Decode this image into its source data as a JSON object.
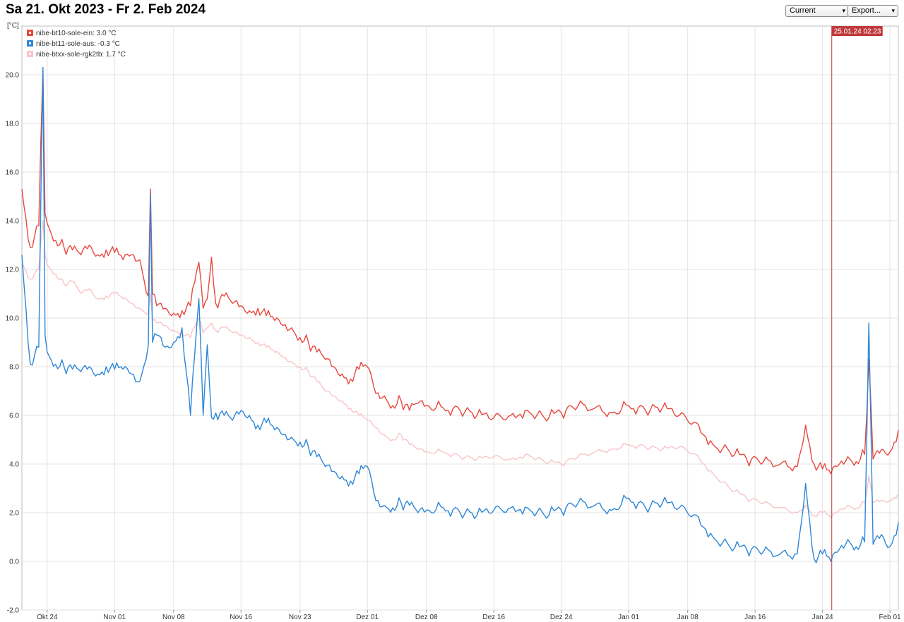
{
  "title": "Sa 21. Okt 2023 - Fr 2. Feb 2024",
  "controls": {
    "range_select": {
      "value": "Current"
    },
    "export_select": {
      "value": "Export..."
    }
  },
  "icons": {
    "dropdown": "chevron-down-icon",
    "legend_marker": "square-swatch-icon"
  },
  "cursor_label": "25.01.24 02:23",
  "chart_data": {
    "type": "line",
    "title": "",
    "xlabel": "",
    "ylabel": "[°C]",
    "x_range": [
      "2023-10-21",
      "2024-02-02"
    ],
    "ylim": [
      -2.0,
      22.0
    ],
    "y_ticks": [
      -2.0,
      0.0,
      2.0,
      4.0,
      6.0,
      8.0,
      10.0,
      12.0,
      14.0,
      16.0,
      18.0,
      20.0
    ],
    "y_tick_labels": [
      "-2.0",
      "0.0",
      "2.0",
      "4.0",
      "6.0",
      "8.0",
      "10.0",
      "12.0",
      "14.0",
      "16.0",
      "18.0",
      "20.0"
    ],
    "x_ticks": [
      "2023-10-24",
      "2023-11-01",
      "2023-11-08",
      "2023-11-16",
      "2023-11-23",
      "2023-12-01",
      "2023-12-08",
      "2023-12-16",
      "2023-12-24",
      "2024-01-01",
      "2024-01-08",
      "2024-01-16",
      "2024-01-24",
      "2024-02-01"
    ],
    "x_tick_labels": [
      "Okt 24",
      "Nov 01",
      "Nov 08",
      "Nov 16",
      "Nov 23",
      "Dez 01",
      "Dez 08",
      "Dez 16",
      "Dez 24",
      "Jan 01",
      "Jan 08",
      "Jan 16",
      "Jan 24",
      "Feb 01"
    ],
    "grid": true,
    "legend_position": "top-left",
    "cursor_x": "2024-01-25 02:23",
    "cursor_color": "#c0393b",
    "series": [
      {
        "name": "nibe-bt10-sole-ein",
        "legend": "nibe-bt10-sole-ein: 3.0 °C",
        "color": "#e8483e",
        "x": [
          "2023-10-21",
          "2023-10-22",
          "2023-10-23",
          "2023-10-23 12:00",
          "2023-10-23 18:00",
          "2023-10-24",
          "2023-10-25",
          "2023-10-26",
          "2023-10-27",
          "2023-10-28",
          "2023-10-29",
          "2023-10-30",
          "2023-10-31",
          "2023-11-01",
          "2023-11-02",
          "2023-11-03",
          "2023-11-04",
          "2023-11-05",
          "2023-11-05 06:00",
          "2023-11-05 12:00",
          "2023-11-06",
          "2023-11-07",
          "2023-11-08",
          "2023-11-09",
          "2023-11-10",
          "2023-11-11",
          "2023-11-11 12:00",
          "2023-11-12",
          "2023-11-12 12:00",
          "2023-11-13",
          "2023-11-14",
          "2023-11-15",
          "2023-11-16",
          "2023-11-17",
          "2023-11-18",
          "2023-11-19",
          "2023-11-20",
          "2023-11-21",
          "2023-11-22",
          "2023-11-23",
          "2023-11-24",
          "2023-11-25",
          "2023-11-26",
          "2023-11-27",
          "2023-11-28",
          "2023-11-29",
          "2023-11-30",
          "2023-12-01",
          "2023-12-02",
          "2023-12-03",
          "2023-12-04",
          "2023-12-05",
          "2023-12-06",
          "2023-12-07",
          "2023-12-08",
          "2023-12-10",
          "2023-12-12",
          "2023-12-14",
          "2023-12-16",
          "2023-12-18",
          "2023-12-20",
          "2023-12-22",
          "2023-12-24",
          "2023-12-26",
          "2023-12-28",
          "2023-12-30",
          "2024-01-01",
          "2024-01-03",
          "2024-01-05",
          "2024-01-07",
          "2024-01-09",
          "2024-01-11",
          "2024-01-13",
          "2024-01-15",
          "2024-01-17",
          "2024-01-19",
          "2024-01-21",
          "2024-01-22",
          "2024-01-23",
          "2024-01-24",
          "2024-01-25",
          "2024-01-26",
          "2024-01-27",
          "2024-01-28",
          "2024-01-29",
          "2024-01-29 12:00",
          "2024-01-30",
          "2024-01-31",
          "2024-02-01",
          "2024-02-02"
        ],
        "y": [
          15.3,
          12.9,
          13.8,
          20.2,
          14.3,
          13.9,
          13.2,
          12.9,
          12.8,
          12.6,
          13.0,
          12.6,
          12.8,
          12.7,
          12.4,
          12.6,
          12.4,
          10.9,
          15.3,
          11.0,
          10.5,
          10.4,
          10.2,
          10.3,
          10.5,
          12.3,
          10.4,
          10.8,
          12.5,
          10.6,
          10.9,
          10.6,
          10.5,
          10.3,
          10.4,
          10.1,
          9.9,
          9.7,
          9.6,
          9.2,
          9.0,
          8.6,
          8.3,
          8.0,
          7.7,
          7.5,
          7.9,
          8.0,
          6.9,
          6.8,
          6.4,
          6.6,
          6.2,
          6.5,
          6.4,
          6.3,
          6.2,
          6.0,
          5.9,
          6.0,
          6.2,
          5.9,
          6.1,
          6.4,
          6.3,
          6.1,
          6.4,
          6.2,
          6.3,
          6.0,
          5.7,
          4.8,
          4.5,
          4.2,
          4.1,
          4.0,
          3.9,
          5.6,
          4.0,
          3.8,
          3.6,
          4.0,
          4.3,
          4.1,
          4.4,
          8.3,
          4.2,
          4.6,
          4.5,
          5.4
        ]
      },
      {
        "name": "nibe-bt11-sole-aus",
        "legend": "nibe-bt11-sole-aus: -0.3 °C",
        "color": "#2f86d6",
        "x": [
          "2023-10-21",
          "2023-10-22",
          "2023-10-23",
          "2023-10-23 12:00",
          "2023-10-23 18:00",
          "2023-10-24",
          "2023-10-25",
          "2023-10-26",
          "2023-10-27",
          "2023-10-28",
          "2023-10-29",
          "2023-10-30",
          "2023-10-31",
          "2023-11-01",
          "2023-11-02",
          "2023-11-03",
          "2023-11-04",
          "2023-11-05",
          "2023-11-05 06:00",
          "2023-11-05 12:00",
          "2023-11-06",
          "2023-11-07",
          "2023-11-08",
          "2023-11-09",
          "2023-11-10",
          "2023-11-11",
          "2023-11-11 12:00",
          "2023-11-12",
          "2023-11-12 12:00",
          "2023-11-13",
          "2023-11-14",
          "2023-11-15",
          "2023-11-16",
          "2023-11-17",
          "2023-11-18",
          "2023-11-19",
          "2023-11-20",
          "2023-11-21",
          "2023-11-22",
          "2023-11-23",
          "2023-11-24",
          "2023-11-25",
          "2023-11-26",
          "2023-11-27",
          "2023-11-28",
          "2023-11-29",
          "2023-11-30",
          "2023-12-01",
          "2023-12-02",
          "2023-12-03",
          "2023-12-04",
          "2023-12-05",
          "2023-12-06",
          "2023-12-07",
          "2023-12-08",
          "2023-12-10",
          "2023-12-12",
          "2023-12-14",
          "2023-12-16",
          "2023-12-18",
          "2023-12-20",
          "2023-12-22",
          "2023-12-24",
          "2023-12-26",
          "2023-12-28",
          "2023-12-30",
          "2024-01-01",
          "2024-01-03",
          "2024-01-05",
          "2024-01-07",
          "2024-01-09",
          "2024-01-11",
          "2024-01-13",
          "2024-01-15",
          "2024-01-17",
          "2024-01-19",
          "2024-01-21",
          "2024-01-22",
          "2024-01-23",
          "2024-01-24",
          "2024-01-25",
          "2024-01-26",
          "2024-01-27",
          "2024-01-28",
          "2024-01-29",
          "2024-01-29 12:00",
          "2024-01-30",
          "2024-01-31",
          "2024-02-01",
          "2024-02-02"
        ],
        "y": [
          12.6,
          8.1,
          8.8,
          20.3,
          9.3,
          8.6,
          8.1,
          8.0,
          7.9,
          7.8,
          8.0,
          7.7,
          8.0,
          7.9,
          7.9,
          7.7,
          7.4,
          8.9,
          15.1,
          9.0,
          9.3,
          8.8,
          9.0,
          9.6,
          6.0,
          10.8,
          6.0,
          8.9,
          5.9,
          6.1,
          6.0,
          5.8,
          6.2,
          6.0,
          5.6,
          5.7,
          5.4,
          5.2,
          5.1,
          4.9,
          4.7,
          4.3,
          3.9,
          3.7,
          3.5,
          3.3,
          3.6,
          3.9,
          2.5,
          2.3,
          2.2,
          2.4,
          2.3,
          2.0,
          2.1,
          2.2,
          2.0,
          1.9,
          2.1,
          2.2,
          2.2,
          1.9,
          2.1,
          2.4,
          2.3,
          2.1,
          2.6,
          2.2,
          2.4,
          2.2,
          1.9,
          1.0,
          0.6,
          0.5,
          0.4,
          0.3,
          0.3,
          3.2,
          0.1,
          0.3,
          0.0,
          0.5,
          0.9,
          0.6,
          0.8,
          9.8,
          0.7,
          1.1,
          0.6,
          1.6
        ]
      },
      {
        "name": "nibe-btxx-sole-rgk2tb",
        "legend": "nibe-btxx-sole-rgk2tb: 1.7 °C",
        "color": "#f8c4c8",
        "x": [
          "2023-10-21",
          "2023-10-22",
          "2023-10-23",
          "2023-10-23 12:00",
          "2023-10-23 18:00",
          "2023-10-24",
          "2023-10-25",
          "2023-10-26",
          "2023-10-27",
          "2023-10-28",
          "2023-10-29",
          "2023-10-30",
          "2023-10-31",
          "2023-11-01",
          "2023-11-02",
          "2023-11-03",
          "2023-11-04",
          "2023-11-05",
          "2023-11-05 06:00",
          "2023-11-05 12:00",
          "2023-11-06",
          "2023-11-07",
          "2023-11-08",
          "2023-11-09",
          "2023-11-10",
          "2023-11-11",
          "2023-11-11 12:00",
          "2023-11-12",
          "2023-11-12 12:00",
          "2023-11-13",
          "2023-11-14",
          "2023-11-15",
          "2023-11-16",
          "2023-11-17",
          "2023-11-18",
          "2023-11-19",
          "2023-11-20",
          "2023-11-21",
          "2023-11-22",
          "2023-11-23",
          "2023-11-24",
          "2023-11-25",
          "2023-11-26",
          "2023-11-27",
          "2023-11-28",
          "2023-11-29",
          "2023-11-30",
          "2023-12-01",
          "2023-12-02",
          "2023-12-03",
          "2023-12-04",
          "2023-12-05",
          "2023-12-06",
          "2023-12-07",
          "2023-12-08",
          "2023-12-10",
          "2023-12-12",
          "2023-12-14",
          "2023-12-16",
          "2023-12-18",
          "2023-12-20",
          "2023-12-22",
          "2023-12-24",
          "2023-12-26",
          "2023-12-28",
          "2023-12-30",
          "2024-01-01",
          "2024-01-03",
          "2024-01-05",
          "2024-01-07",
          "2024-01-09",
          "2024-01-11",
          "2024-01-13",
          "2024-01-15",
          "2024-01-17",
          "2024-01-19",
          "2024-01-21",
          "2024-01-22",
          "2024-01-23",
          "2024-01-24",
          "2024-01-25",
          "2024-01-26",
          "2024-01-27",
          "2024-01-28",
          "2024-01-29",
          "2024-01-29 12:00",
          "2024-01-30",
          "2024-01-31",
          "2024-02-01",
          "2024-02-02"
        ],
        "y": [
          12.3,
          11.6,
          12.0,
          14.0,
          12.6,
          12.2,
          11.8,
          11.4,
          11.5,
          11.0,
          11.2,
          10.8,
          10.9,
          11.0,
          10.8,
          10.6,
          10.4,
          10.2,
          11.0,
          9.9,
          9.8,
          9.7,
          9.5,
          9.4,
          9.2,
          10.0,
          9.4,
          9.6,
          9.8,
          9.5,
          9.6,
          9.4,
          9.3,
          9.2,
          9.0,
          8.8,
          8.6,
          8.4,
          8.2,
          8.0,
          7.8,
          7.4,
          7.0,
          6.8,
          6.6,
          6.3,
          6.0,
          5.8,
          5.5,
          5.2,
          5.0,
          5.2,
          4.8,
          4.6,
          4.5,
          4.5,
          4.3,
          4.2,
          4.3,
          4.2,
          4.4,
          4.1,
          4.0,
          4.3,
          4.5,
          4.6,
          4.8,
          4.7,
          4.6,
          4.7,
          4.4,
          3.6,
          3.0,
          2.6,
          2.4,
          2.2,
          2.0,
          2.3,
          1.9,
          2.0,
          1.8,
          2.1,
          2.3,
          2.2,
          2.4,
          3.5,
          2.4,
          2.5,
          2.5,
          2.8
        ]
      }
    ]
  }
}
